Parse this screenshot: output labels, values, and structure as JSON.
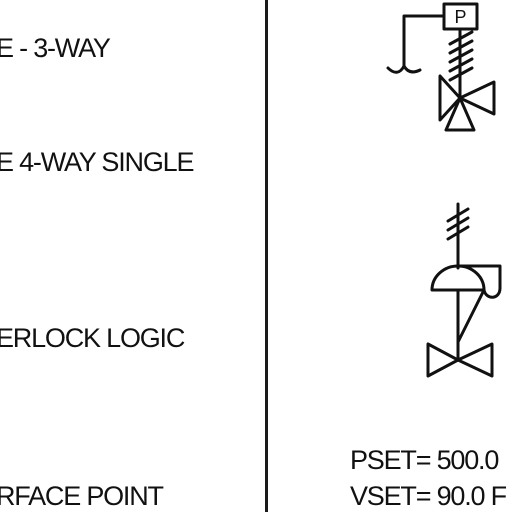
{
  "legend": {
    "row1": "E - 3-WAY",
    "row2": "E 4-WAY SINGLE",
    "row3": "ERLOCK LOGIC",
    "row4": "RFACE POINT"
  },
  "symbols": {
    "solenoid_letter": "P"
  },
  "setpoints": {
    "pset": "PSET= 500.0",
    "vset": "VSET= 90.0 F"
  }
}
